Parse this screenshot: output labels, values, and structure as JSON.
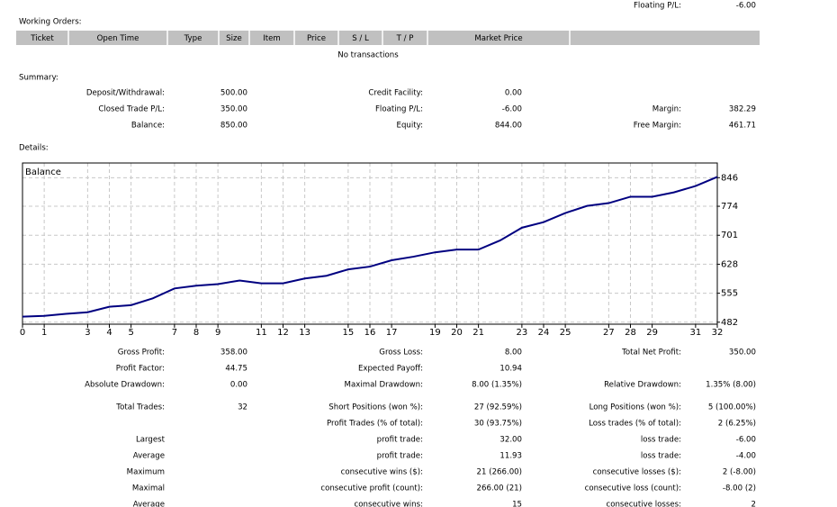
{
  "top": {
    "label": "Floating P/L:",
    "value": "-6.00"
  },
  "working_orders": {
    "title": "Working Orders:",
    "columns": [
      "Ticket",
      "Open Time",
      "Type",
      "Size",
      "Item",
      "Price",
      "S / L",
      "T / P",
      "Market Price"
    ],
    "empty": "No transactions"
  },
  "summary": {
    "title": "Summary:",
    "rows": [
      [
        "Deposit/Withdrawal:",
        "500.00",
        "Credit Facility:",
        "0.00",
        null,
        null
      ],
      [
        "Closed Trade P/L:",
        "350.00",
        "Floating P/L:",
        "-6.00",
        "Margin:",
        "382.29"
      ],
      [
        "Balance:",
        "850.00",
        "Equity:",
        "844.00",
        "Free Margin:",
        "461.71"
      ]
    ]
  },
  "details": {
    "title": "Details:",
    "rows": [
      [
        "Gross Profit:",
        "358.00",
        "Gross Loss:",
        "8.00",
        "Total Net Profit:",
        "350.00"
      ],
      [
        "Profit Factor:",
        "44.75",
        "Expected Payoff:",
        "10.94",
        null,
        null
      ],
      [
        "Absolute Drawdown:",
        "0.00",
        "Maximal Drawdown:",
        "8.00 (1.35%)",
        "Relative Drawdown:",
        "1.35% (8.00)"
      ],
      [
        "Total Trades:",
        "32",
        "Short Positions (won %):",
        "27 (92.59%)",
        "Long Positions (won %):",
        "5 (100.00%)"
      ],
      [
        null,
        null,
        "Profit Trades (% of total):",
        "30 (93.75%)",
        "Loss trades (% of total):",
        "2 (6.25%)"
      ],
      [
        "Largest",
        null,
        "profit trade:",
        "32.00",
        "loss trade:",
        "-6.00"
      ],
      [
        "Average",
        null,
        "profit trade:",
        "11.93",
        "loss trade:",
        "-4.00"
      ],
      [
        "Maximum",
        null,
        "consecutive wins ($):",
        "21 (266.00)",
        "consecutive losses ($):",
        "2 (-8.00)"
      ],
      [
        "Maximal",
        null,
        "consecutive profit (count):",
        "266.00 (21)",
        "consecutive loss (count):",
        "-8.00 (2)"
      ],
      [
        "Average",
        null,
        "consecutive wins:",
        "15",
        "consecutive losses:",
        "2"
      ]
    ]
  },
  "chart_data": {
    "type": "line",
    "title": "Balance",
    "x": [
      0,
      1,
      2,
      3,
      4,
      5,
      6,
      7,
      8,
      9,
      10,
      11,
      12,
      13,
      14,
      15,
      16,
      17,
      18,
      19,
      20,
      21,
      22,
      23,
      24,
      25,
      26,
      27,
      28,
      29,
      30,
      31,
      32
    ],
    "series": [
      {
        "color": "#000080",
        "values": [
          496,
          498,
          503,
          507,
          521,
          525,
          542,
          567,
          574,
          578,
          587,
          580,
          580,
          592,
          599,
          615,
          622,
          638,
          647,
          658,
          665,
          665,
          688,
          720,
          734,
          757,
          775,
          782,
          798,
          798,
          809,
          825,
          848
        ]
      }
    ],
    "xlim": [
      0,
      32
    ],
    "xticks": [
      0,
      1,
      3,
      4,
      5,
      7,
      8,
      9,
      11,
      12,
      13,
      15,
      16,
      17,
      19,
      20,
      21,
      23,
      24,
      25,
      27,
      28,
      29,
      31,
      32
    ],
    "ylim": [
      477,
      883
    ],
    "yticks": [
      482,
      555,
      628,
      701,
      774,
      846
    ],
    "grid": true
  }
}
